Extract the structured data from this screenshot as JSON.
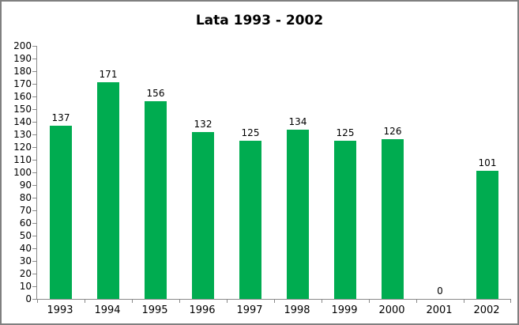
{
  "chart_data": {
    "type": "bar",
    "title": "Lata 1993 - 2002",
    "categories": [
      "1993",
      "1994",
      "1995",
      "1996",
      "1997",
      "1998",
      "1999",
      "2000",
      "2001",
      "2002"
    ],
    "values": [
      137,
      171,
      156,
      132,
      125,
      134,
      125,
      126,
      0,
      101
    ],
    "xlabel": "",
    "ylabel": "",
    "ylim": [
      0,
      200
    ],
    "ytick_step": 10,
    "yticks": [
      0,
      10,
      20,
      30,
      40,
      50,
      60,
      70,
      80,
      90,
      100,
      110,
      120,
      130,
      140,
      150,
      160,
      170,
      180,
      190,
      200
    ],
    "grid": false,
    "legend": "none",
    "data_labels": true,
    "colors": {
      "bar": "#00AC50",
      "axis": "#898989",
      "text": "#000000",
      "frame_border": "#808080",
      "background": "#ffffff"
    }
  }
}
